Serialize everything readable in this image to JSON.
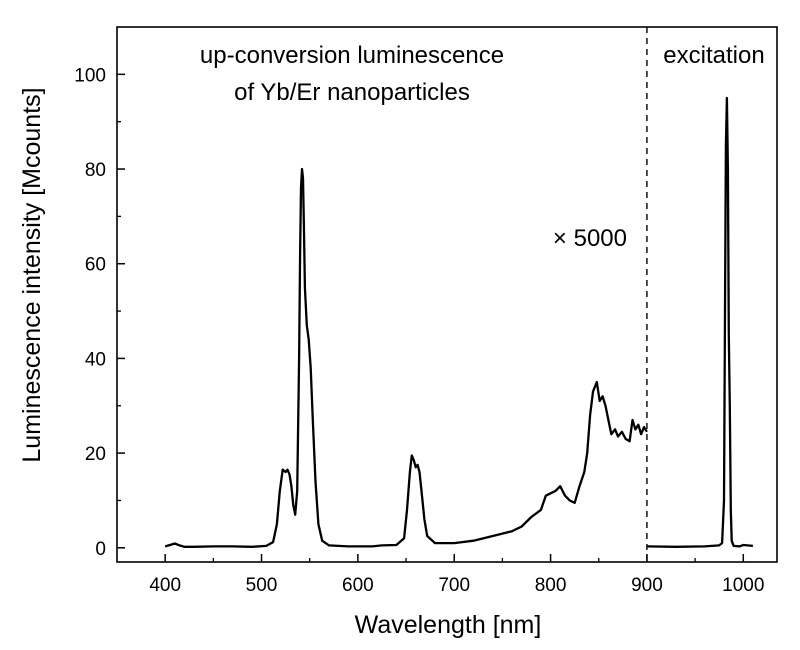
{
  "chart_data": {
    "type": "line",
    "xlabel": "Wavelength [nm]",
    "ylabel": "Luminescence intensity [Mcounts]",
    "xlim": [
      350,
      1035
    ],
    "ylim": [
      -3,
      110
    ],
    "x_ticks": [
      400,
      500,
      600,
      700,
      800,
      900,
      1000
    ],
    "y_ticks": [
      0,
      20,
      40,
      60,
      80,
      100
    ],
    "grid": false,
    "divider": {
      "x": 900,
      "style": "dashed"
    },
    "annotations": {
      "left_title_line1": "up-conversion luminescence",
      "left_title_line2": "of Yb/Er nanoparticles",
      "right_title": "excitation",
      "multiplier": "× 5000"
    },
    "series": [
      {
        "name": "up-conversion luminescence of Yb/Er nanoparticles",
        "points": [
          [
            400,
            0.3
          ],
          [
            405,
            0.6
          ],
          [
            410,
            0.9
          ],
          [
            415,
            0.5
          ],
          [
            420,
            0.2
          ],
          [
            430,
            0.2
          ],
          [
            450,
            0.3
          ],
          [
            470,
            0.3
          ],
          [
            490,
            0.2
          ],
          [
            505,
            0.4
          ],
          [
            512,
            1.2
          ],
          [
            516,
            5.0
          ],
          [
            519,
            12.0
          ],
          [
            522,
            16.5
          ],
          [
            525,
            16.0
          ],
          [
            527,
            16.5
          ],
          [
            529,
            15.5
          ],
          [
            531,
            13.0
          ],
          [
            533,
            9.0
          ],
          [
            535,
            7.0
          ],
          [
            537,
            12.0
          ],
          [
            539,
            40.0
          ],
          [
            540,
            62.0
          ],
          [
            541,
            76.0
          ],
          [
            542,
            80.0
          ],
          [
            543,
            78.0
          ],
          [
            544,
            68.0
          ],
          [
            545,
            55.0
          ],
          [
            547,
            47.0
          ],
          [
            549,
            44.0
          ],
          [
            551,
            38.0
          ],
          [
            553,
            28.0
          ],
          [
            556,
            14.0
          ],
          [
            559,
            5.0
          ],
          [
            563,
            1.5
          ],
          [
            570,
            0.5
          ],
          [
            590,
            0.3
          ],
          [
            615,
            0.3
          ],
          [
            625,
            0.5
          ],
          [
            640,
            0.6
          ],
          [
            648,
            2.0
          ],
          [
            651,
            8.0
          ],
          [
            654,
            16.0
          ],
          [
            656,
            19.5
          ],
          [
            658,
            18.5
          ],
          [
            660,
            17.0
          ],
          [
            662,
            17.5
          ],
          [
            664,
            16.0
          ],
          [
            666,
            12.0
          ],
          [
            669,
            6.0
          ],
          [
            672,
            2.5
          ],
          [
            680,
            1.0
          ],
          [
            700,
            1.0
          ],
          [
            720,
            1.5
          ],
          [
            740,
            2.5
          ],
          [
            760,
            3.5
          ],
          [
            770,
            4.5
          ],
          [
            780,
            6.5
          ],
          [
            790,
            8.0
          ],
          [
            795,
            11.0
          ],
          [
            800,
            11.5
          ],
          [
            805,
            12.0
          ],
          [
            810,
            13.0
          ],
          [
            815,
            11.0
          ],
          [
            820,
            10.0
          ],
          [
            825,
            9.5
          ],
          [
            830,
            13.0
          ],
          [
            835,
            16.0
          ],
          [
            838,
            20.0
          ],
          [
            841,
            28.0
          ],
          [
            844,
            33.0
          ],
          [
            848,
            35.0
          ],
          [
            851,
            31.0
          ],
          [
            854,
            32.0
          ],
          [
            857,
            30.0
          ],
          [
            860,
            27.0
          ],
          [
            863,
            24.0
          ],
          [
            867,
            25.0
          ],
          [
            870,
            23.5
          ],
          [
            874,
            24.5
          ],
          [
            878,
            23.0
          ],
          [
            882,
            22.5
          ],
          [
            885,
            27.0
          ],
          [
            888,
            25.0
          ],
          [
            891,
            26.0
          ],
          [
            894,
            24.0
          ],
          [
            897,
            25.5
          ],
          [
            900,
            24.5
          ]
        ]
      },
      {
        "name": "excitation",
        "points": [
          [
            900,
            0.3
          ],
          [
            930,
            0.2
          ],
          [
            960,
            0.3
          ],
          [
            975,
            0.5
          ],
          [
            978,
            1.0
          ],
          [
            980,
            10.0
          ],
          [
            981,
            50.0
          ],
          [
            982,
            85.0
          ],
          [
            983,
            95.0
          ],
          [
            984,
            80.0
          ],
          [
            985,
            45.0
          ],
          [
            986,
            30.0
          ],
          [
            987,
            8.0
          ],
          [
            988,
            1.5
          ],
          [
            990,
            0.4
          ],
          [
            996,
            0.3
          ],
          [
            1000,
            0.6
          ],
          [
            1010,
            0.4
          ]
        ]
      }
    ]
  }
}
